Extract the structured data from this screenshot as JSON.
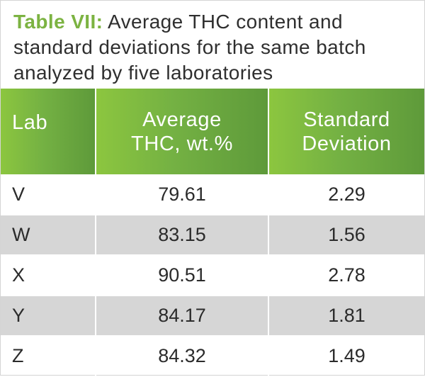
{
  "caption": {
    "label": "Table VII:",
    "text": " Average THC content and standard deviations for the same batch analyzed by five laboratories"
  },
  "table": {
    "headers": {
      "lab": "Lab",
      "avg_line1": "Average",
      "avg_line2": "THC, wt.%",
      "sd_line1": "Standard",
      "sd_line2": "Deviation"
    },
    "rows": [
      {
        "lab": "V",
        "avg": "79.61",
        "sd": "2.29"
      },
      {
        "lab": "W",
        "avg": "83.15",
        "sd": "1.56"
      },
      {
        "lab": "X",
        "avg": "90.51",
        "sd": "2.78"
      },
      {
        "lab": "Y",
        "avg": "84.17",
        "sd": "1.81"
      },
      {
        "lab": "Z",
        "avg": "84.32",
        "sd": "1.49"
      }
    ]
  },
  "colors": {
    "accent": "#7cb342",
    "header_start": "#8cc63f",
    "header_end": "#5e9a3a",
    "alt_row": "#d6d6d6"
  }
}
